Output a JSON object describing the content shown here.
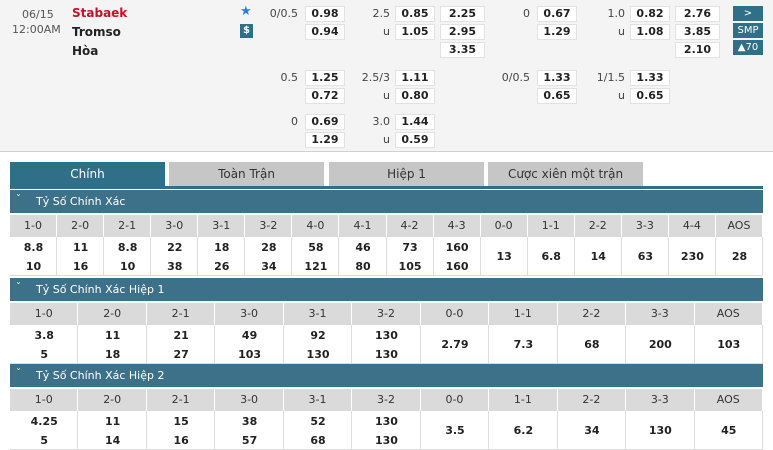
{
  "match": {
    "date": "06/15",
    "time": "12:00AM",
    "home": "Stabaek",
    "away": "Tromso",
    "draw": "Hòa",
    "badge": "$"
  },
  "buttons": [
    ">",
    "SMP",
    "▲70"
  ],
  "groups": [
    {
      "ft": {
        "hdp": {
          "line": "0/0.5",
          "odds": [
            "0.98",
            "0.94"
          ]
        },
        "ou": {
          "line": "2.5",
          "under": "u",
          "odds": [
            "0.85",
            "1.05"
          ]
        },
        "x12": [
          "2.25",
          "2.95",
          "3.35"
        ]
      },
      "ht": {
        "hdp": {
          "line": "0",
          "odds": [
            "0.67",
            "1.29"
          ]
        },
        "ou": {
          "line": "1.0",
          "under": "u",
          "odds": [
            "0.82",
            "1.08"
          ]
        },
        "x12": [
          "2.76",
          "3.85",
          "2.10"
        ]
      }
    },
    {
      "ft": {
        "hdp": {
          "line": "0.5",
          "odds": [
            "1.25",
            "0.72"
          ]
        },
        "ou": {
          "line": "2.5/3",
          "under": "u",
          "odds": [
            "1.11",
            "0.80"
          ]
        }
      },
      "ht": {
        "hdp": {
          "line": "0/0.5",
          "odds": [
            "1.33",
            "0.65"
          ]
        },
        "ou": {
          "line": "1/1.5",
          "under": "u",
          "odds": [
            "1.33",
            "0.65"
          ]
        }
      }
    },
    {
      "ft": {
        "hdp": {
          "line": "0",
          "odds": [
            "0.69",
            "1.29"
          ]
        },
        "ou": {
          "line": "3.0",
          "under": "u",
          "odds": [
            "1.44",
            "0.59"
          ]
        }
      }
    }
  ],
  "tabs": [
    "Chính",
    "Toàn Trận",
    "Hiệp 1",
    "Cược xiên một trận"
  ],
  "sections": [
    {
      "title": "Tỷ Số Chính Xác",
      "columns": [
        "1-0",
        "2-0",
        "2-1",
        "3-0",
        "3-1",
        "3-2",
        "4-0",
        "4-1",
        "4-2",
        "4-3",
        "0-0",
        "1-1",
        "2-2",
        "3-3",
        "4-4",
        "AOS"
      ],
      "cells": [
        [
          "8.8",
          "10"
        ],
        [
          "11",
          "16"
        ],
        [
          "8.8",
          "10"
        ],
        [
          "22",
          "38"
        ],
        [
          "18",
          "26"
        ],
        [
          "28",
          "34"
        ],
        [
          "58",
          "121"
        ],
        [
          "46",
          "80"
        ],
        [
          "73",
          "105"
        ],
        [
          "160",
          "160"
        ],
        [
          "13"
        ],
        [
          "6.8"
        ],
        [
          "14"
        ],
        [
          "63"
        ],
        [
          "230"
        ],
        [
          "28"
        ]
      ]
    },
    {
      "title": "Tỷ Số Chính Xác Hiệp 1",
      "columns": [
        "1-0",
        "2-0",
        "2-1",
        "3-0",
        "3-1",
        "3-2",
        "0-0",
        "1-1",
        "2-2",
        "3-3",
        "AOS"
      ],
      "cells": [
        [
          "3.8",
          "5"
        ],
        [
          "11",
          "18"
        ],
        [
          "21",
          "27"
        ],
        [
          "49",
          "103"
        ],
        [
          "92",
          "130"
        ],
        [
          "130",
          "130"
        ],
        [
          "2.79"
        ],
        [
          "7.3"
        ],
        [
          "68"
        ],
        [
          "200"
        ],
        [
          "103"
        ]
      ]
    },
    {
      "title": "Tỷ Số Chính Xác Hiệp 2",
      "columns": [
        "1-0",
        "2-0",
        "2-1",
        "3-0",
        "3-1",
        "3-2",
        "0-0",
        "1-1",
        "2-2",
        "3-3",
        "AOS"
      ],
      "cells": [
        [
          "4.25",
          "5"
        ],
        [
          "11",
          "14"
        ],
        [
          "15",
          "16"
        ],
        [
          "38",
          "57"
        ],
        [
          "52",
          "68"
        ],
        [
          "130",
          "130"
        ],
        [
          "3.5"
        ],
        [
          "6.2"
        ],
        [
          "34"
        ],
        [
          "130"
        ],
        [
          "45"
        ]
      ]
    }
  ]
}
